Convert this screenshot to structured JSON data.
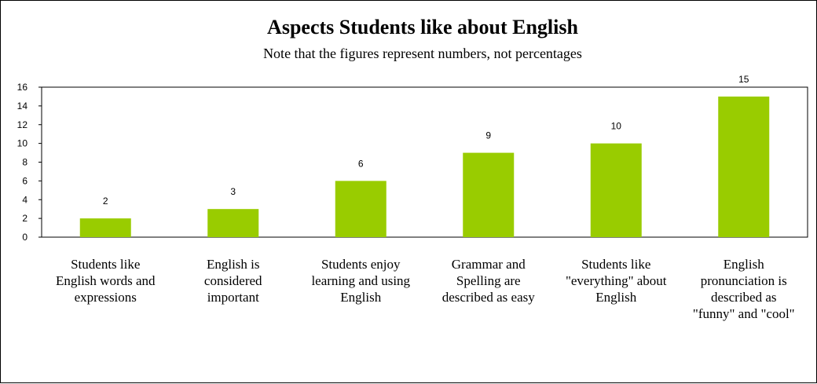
{
  "chart_data": {
    "type": "bar",
    "title": "Aspects Students like about English",
    "subtitle": "Note that the figures represent numbers, not percentages",
    "categories": [
      [
        "Students like",
        "English words and",
        "expressions"
      ],
      [
        "English is",
        "considered",
        "important"
      ],
      [
        "Students enjoy",
        "learning and using",
        "English"
      ],
      [
        "Grammar and",
        "Spelling are",
        "described as easy"
      ],
      [
        "Students like",
        "\"everything\" about",
        "English"
      ],
      [
        "English",
        "pronunciation is",
        "described as",
        "\"funny\" and \"cool\""
      ]
    ],
    "values": [
      2,
      3,
      6,
      9,
      10,
      15
    ],
    "ylim": [
      0,
      16
    ],
    "yticks": [
      0,
      2,
      4,
      6,
      8,
      10,
      12,
      14,
      16
    ],
    "grid": false,
    "legend": "none",
    "bar_color": "#99cc00"
  }
}
